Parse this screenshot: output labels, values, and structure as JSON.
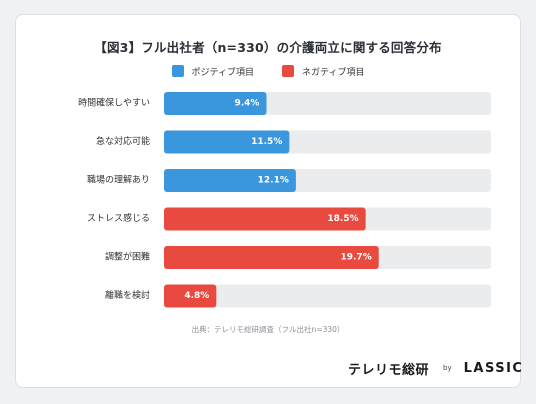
{
  "title": "【図3】フル出社者（n=330）の介護両立に関する回答分布",
  "legend": {
    "positive": "ポジティブ項目",
    "negative": "ネガティブ項目"
  },
  "colors": {
    "positive": "#3a96dd",
    "negative": "#e84a3f",
    "track": "#eaecee"
  },
  "chart_data": {
    "type": "bar",
    "orientation": "horizontal",
    "xlim": [
      0,
      30
    ],
    "categories": [
      "時間確保しやすい",
      "急な対応可能",
      "職場の理解あり",
      "ストレス感じる",
      "調整が困難",
      "離職を検討"
    ],
    "values": [
      9.4,
      11.5,
      12.1,
      18.5,
      19.7,
      4.8
    ],
    "groups": [
      "positive",
      "positive",
      "positive",
      "negative",
      "negative",
      "negative"
    ],
    "value_labels": [
      "9.4%",
      "11.5%",
      "12.1%",
      "18.5%",
      "19.7%",
      "4.8%"
    ]
  },
  "source": "出典：テレリモ総研調査（フル出社n=330）",
  "brand": {
    "main": "テレリモ総研",
    "by": "by",
    "logo": "LASSIC"
  }
}
